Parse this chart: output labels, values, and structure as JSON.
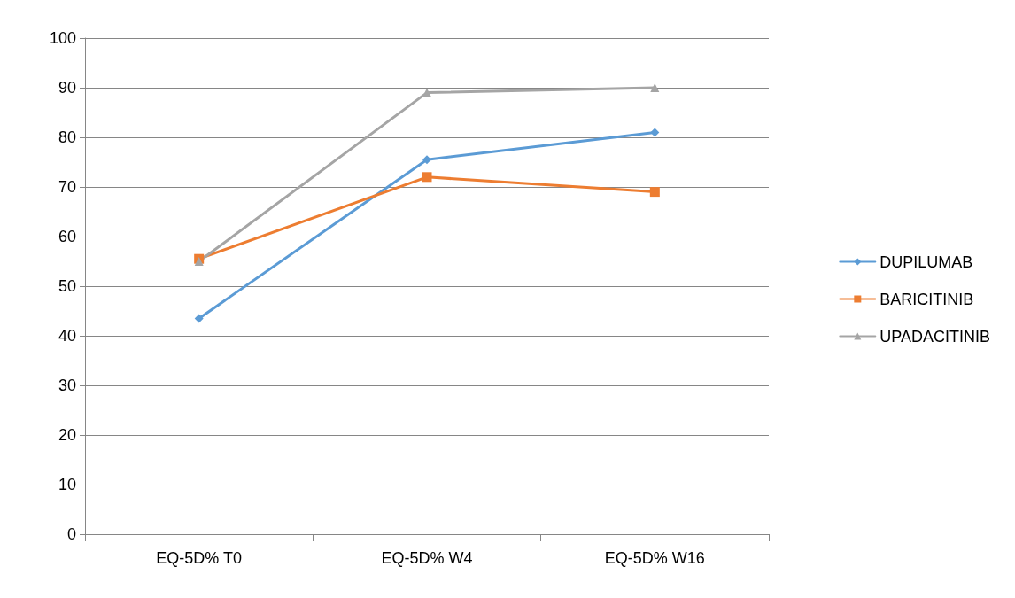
{
  "chart_data": {
    "type": "line",
    "categories": [
      "EQ-5D% T0",
      "EQ-5D% W4",
      "EQ-5D% W16"
    ],
    "series": [
      {
        "name": "DUPILUMAB",
        "color": "#5b9bd5",
        "marker": "diamond",
        "values": [
          43.5,
          75.5,
          81
        ]
      },
      {
        "name": "BARICITINIB",
        "color": "#ed7d31",
        "marker": "square",
        "values": [
          55.5,
          72,
          69
        ]
      },
      {
        "name": "UPADACITINIB",
        "color": "#a5a5a5",
        "marker": "triangle",
        "values": [
          55,
          89,
          90
        ]
      }
    ],
    "ylim": [
      0,
      100
    ],
    "yticks": [
      0,
      10,
      20,
      30,
      40,
      50,
      60,
      70,
      80,
      90,
      100
    ],
    "grid": "y",
    "legend": "right",
    "line_style": "solid"
  }
}
